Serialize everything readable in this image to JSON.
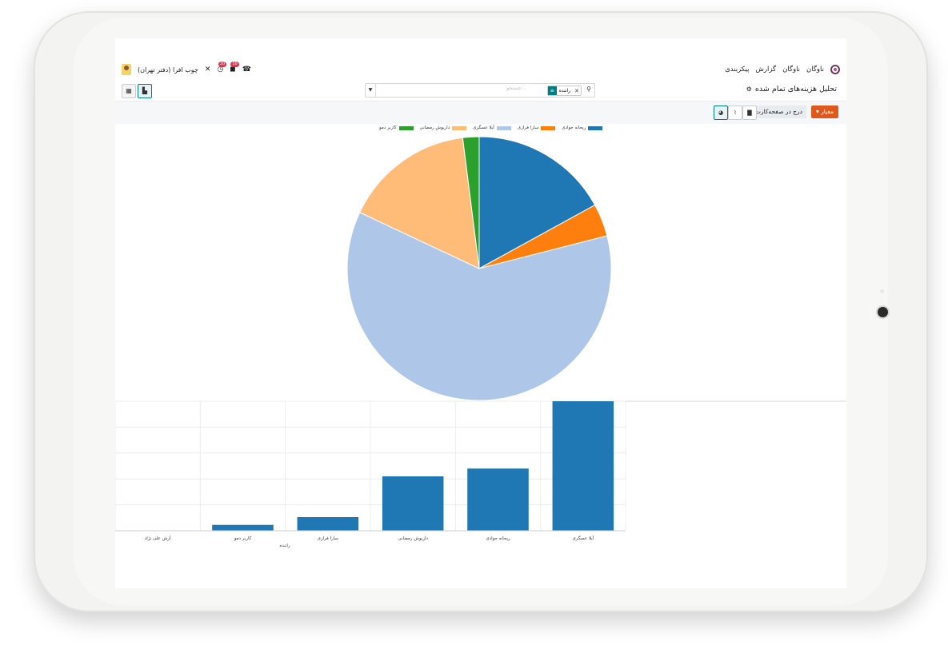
{
  "nav": {
    "app_name": "ناوگان",
    "menus": [
      "ناوگان",
      "گزارش",
      "پیکربندی"
    ],
    "company": "چوب افرا (دفتر تهران)",
    "badge_activity": "20",
    "badge_messages": "10"
  },
  "control": {
    "title": "تحلیل هزینه‌های تمام شده",
    "search_facet": "راننده",
    "search_placeholder": "جستجو...",
    "measures_label": "معیار",
    "insert_label": "درج در صفحه‌کارت"
  },
  "colors": {
    "accent": "#e0591c",
    "teal": "#017e84"
  },
  "chart_data": [
    {
      "type": "pie",
      "legend_position": "top",
      "series": [
        {
          "name": "ریحانه جوادی",
          "value": 17,
          "color": "#1f77b4"
        },
        {
          "name": "سارا فرازی",
          "value": 4,
          "color": "#ff7f0e"
        },
        {
          "name": "آیلا عسگری",
          "value": 61,
          "color": "#aec7e8"
        },
        {
          "name": "داریوش رمضانی",
          "value": 16,
          "color": "#ffbb78"
        },
        {
          "name": "کاربر دمو",
          "value": 2,
          "color": "#2ca02c"
        }
      ]
    },
    {
      "type": "bar",
      "xlabel": "راننده",
      "categories": [
        "آرش علی نژاد",
        "کاربر دمو",
        "سارا فرازی",
        "داریوش رمضانی",
        "ریحانه جوادی",
        "آیلا عسگری"
      ],
      "values": [
        0,
        4.5,
        10.5,
        42,
        48,
        100
      ],
      "ylim": [
        0,
        100
      ],
      "color": "#1f77b4",
      "grid": true
    }
  ]
}
